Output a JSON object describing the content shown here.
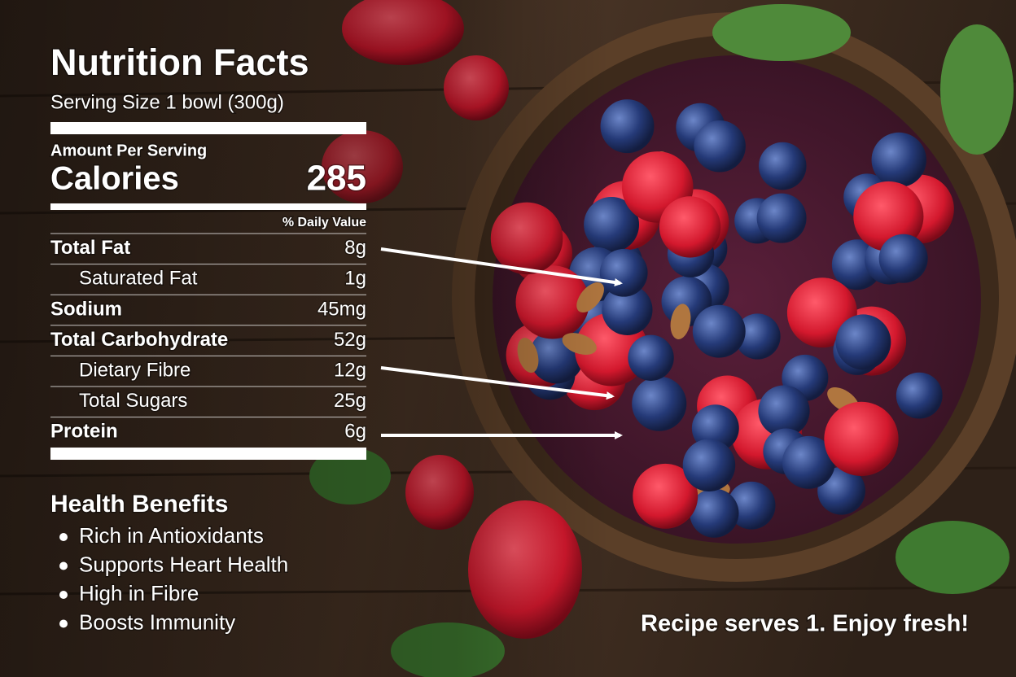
{
  "title": "Nutrition Facts",
  "serving_size": "Serving Size 1 bowl (300g)",
  "amount_per_serving": "Amount Per Serving",
  "calories": {
    "label": "Calories",
    "value": 285
  },
  "daily_value_header": "% Daily Value",
  "nutrients": [
    {
      "name": "Total Fat",
      "amount": "8g",
      "bold": true
    },
    {
      "name": "Saturated Fat",
      "amount": "1g",
      "bold": false
    },
    {
      "name": "Sodium",
      "amount": "45mg",
      "bold": true
    },
    {
      "name": "Total Carbohydrate",
      "amount": "52g",
      "bold": true
    },
    {
      "name": "Dietary Fibre",
      "amount": "12g",
      "bold": false
    },
    {
      "name": "Total Sugars",
      "amount": "25g",
      "bold": false
    },
    {
      "name": "Protein",
      "amount": "6g",
      "bold": true
    }
  ],
  "health_benefits": {
    "title": "Health Benefits",
    "items": [
      "Rich in Antioxidants",
      "Supports Heart Health",
      "High in Fibre",
      "Boosts Immunity"
    ]
  },
  "footer": "Recipe serves 1. Enjoy fresh!"
}
